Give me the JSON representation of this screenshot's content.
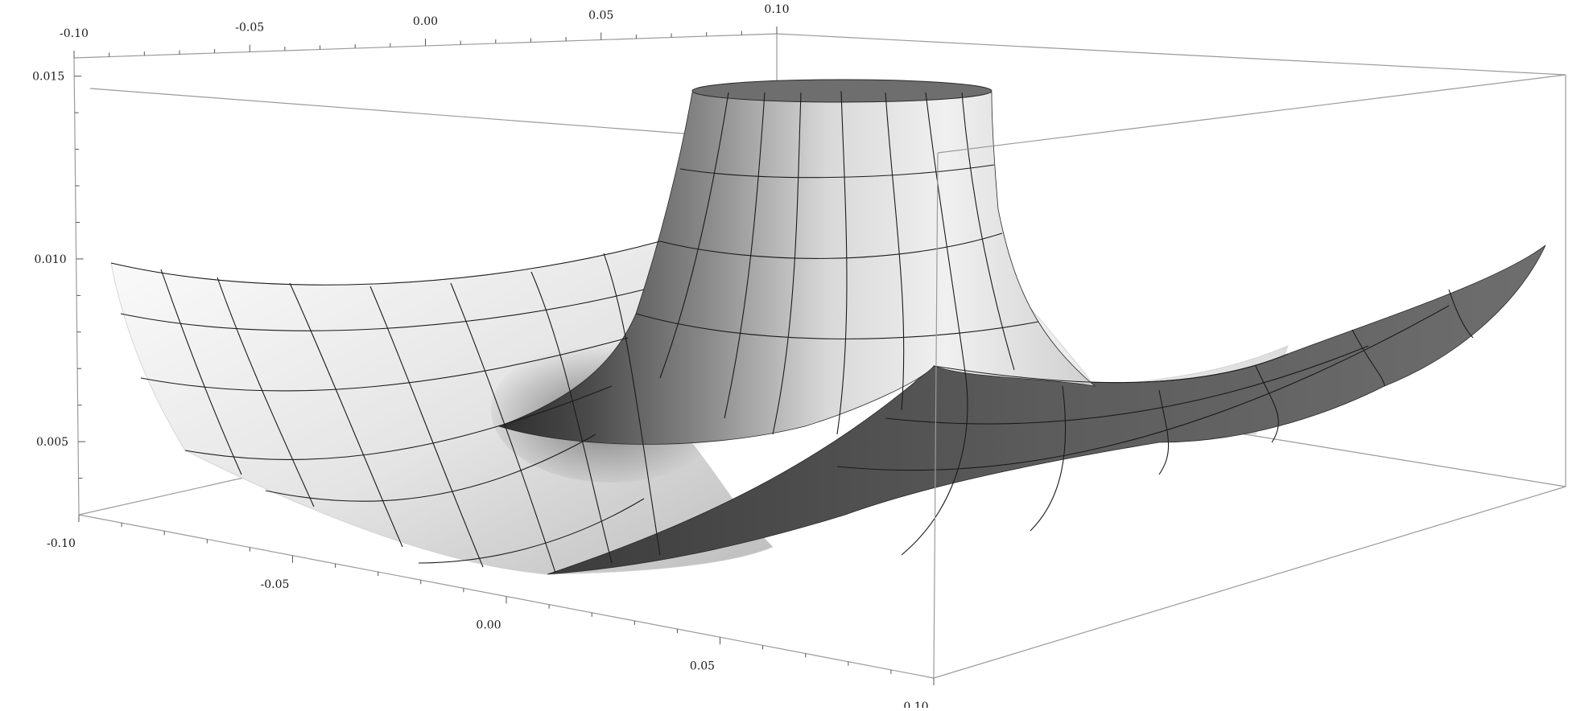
{
  "chart_data": {
    "type": "surface3d",
    "title": "",
    "xlabel": "",
    "ylabel": "",
    "zlabel": "",
    "x_axis": {
      "range": [
        -0.1,
        0.1
      ],
      "tick_labels": [
        "-0.10",
        "-0.05",
        "0.00",
        "0.05",
        "0.10"
      ],
      "tick_values": [
        -0.1,
        -0.05,
        0.0,
        0.05,
        0.1
      ]
    },
    "y_axis": {
      "range": [
        -0.1,
        0.1
      ],
      "tick_labels": [
        "-0.10",
        "-0.05",
        "0.00",
        "0.05",
        "0.10"
      ],
      "tick_values": [
        -0.1,
        -0.05,
        0.0,
        0.05,
        0.1
      ]
    },
    "z_axis": {
      "range": [
        0.003,
        0.0155
      ],
      "tick_labels": [
        "0.005",
        "0.010",
        "0.015"
      ],
      "tick_values": [
        0.005,
        0.01,
        0.015
      ]
    },
    "surface": {
      "description_shape": "bowl with central singular spike clipped at top",
      "z_clip_top": 0.0155,
      "z_min_approx": 0.003,
      "mesh_lines": 10,
      "colors": {
        "light": "#f2f2f2",
        "mid": "#b0b0b0",
        "dark": "#4a4a4a",
        "mesh": "#1b1b1b",
        "box": "#9a9a9a"
      }
    },
    "grid": false,
    "legend": "none"
  }
}
